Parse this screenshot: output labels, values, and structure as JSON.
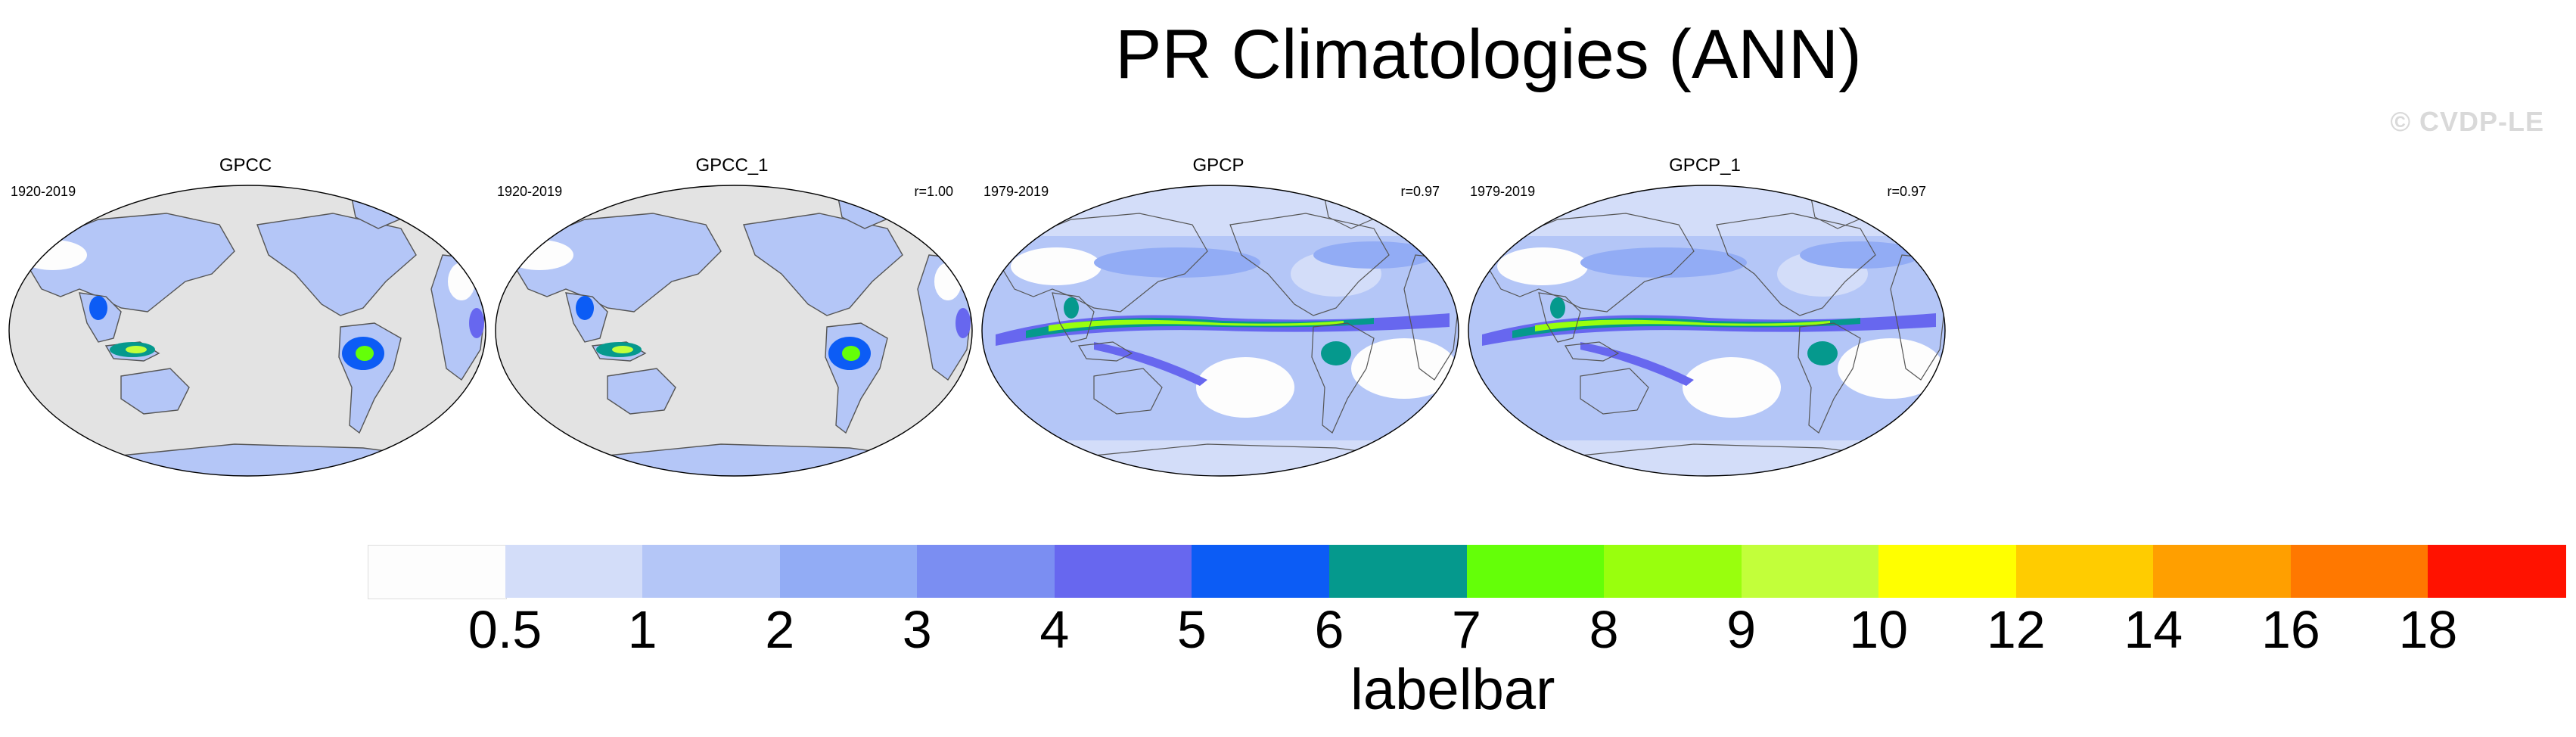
{
  "figure": {
    "title": "PR Climatologies (ANN)",
    "watermark": "© CVDP-LE"
  },
  "panels": [
    {
      "name": "GPCC",
      "period": "1920-2019",
      "r": "",
      "dataset_type": "land"
    },
    {
      "name": "GPCC_1",
      "period": "1920-2019",
      "r": "r=1.00",
      "dataset_type": "land"
    },
    {
      "name": "GPCP",
      "period": "1979-2019",
      "r": "r=0.97",
      "dataset_type": "global"
    },
    {
      "name": "GPCP_1",
      "period": "1979-2019",
      "r": "r=0.97",
      "dataset_type": "global"
    }
  ],
  "colorbar": {
    "label": "labelbar",
    "tick_labels": [
      "0.5",
      "1",
      "2",
      "3",
      "4",
      "5",
      "6",
      "7",
      "8",
      "9",
      "10",
      "12",
      "14",
      "16",
      "18"
    ],
    "colors": [
      "#fdfdfd",
      "#d3ddf9",
      "#b4c6f7",
      "#92acf5",
      "#7b8ef2",
      "#6767ef",
      "#0c5cf5",
      "#05998d",
      "#64ff08",
      "#99ff0d",
      "#c2ff3a",
      "#ffff00",
      "#ffcc00",
      "#ff9f00",
      "#ff7800",
      "#ff1200"
    ]
  },
  "map_colors": {
    "ocean_missing": "#e3e3e3",
    "coast": "#555555"
  }
}
